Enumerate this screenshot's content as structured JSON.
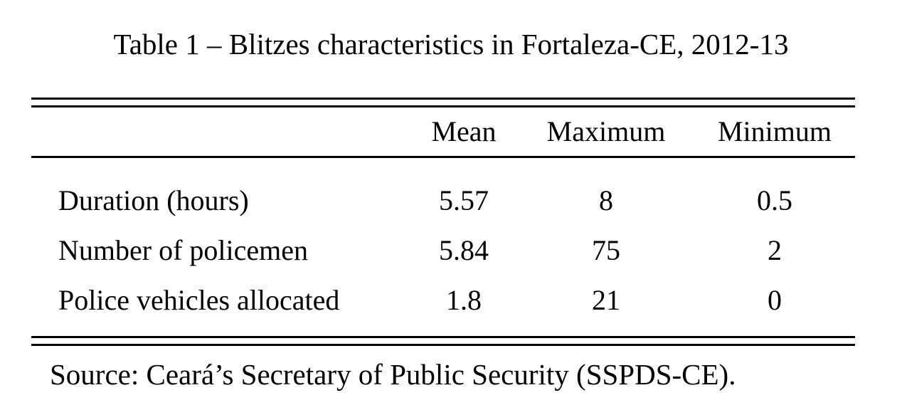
{
  "caption": "Table 1 – Blitzes characteristics in Fortaleza-CE, 2012-13",
  "source_note": "Source: Ceará’s Secretary of Public Security (SSPDS-CE).",
  "chart_data": {
    "type": "table",
    "title": "Table 1 – Blitzes characteristics in Fortaleza-CE, 2012-13",
    "columns": [
      "",
      "Mean",
      "Maximum",
      "Minimum"
    ],
    "rows": [
      [
        "Duration (hours)",
        "5.57",
        "8",
        "0.5"
      ],
      [
        "Number of policemen",
        "5.84",
        "75",
        "2"
      ],
      [
        "Police vehicles allocated",
        "1.8",
        "21",
        "0"
      ]
    ],
    "source": "Source: Ceará’s Secretary of Public Security (SSPDS-CE).",
    "layout": {
      "rules": "double top rule, single rule under header, double bottom rule",
      "label_column_align": "left",
      "value_columns_align": "center",
      "text_color": "#000000",
      "background_color": "#ffffff"
    }
  }
}
